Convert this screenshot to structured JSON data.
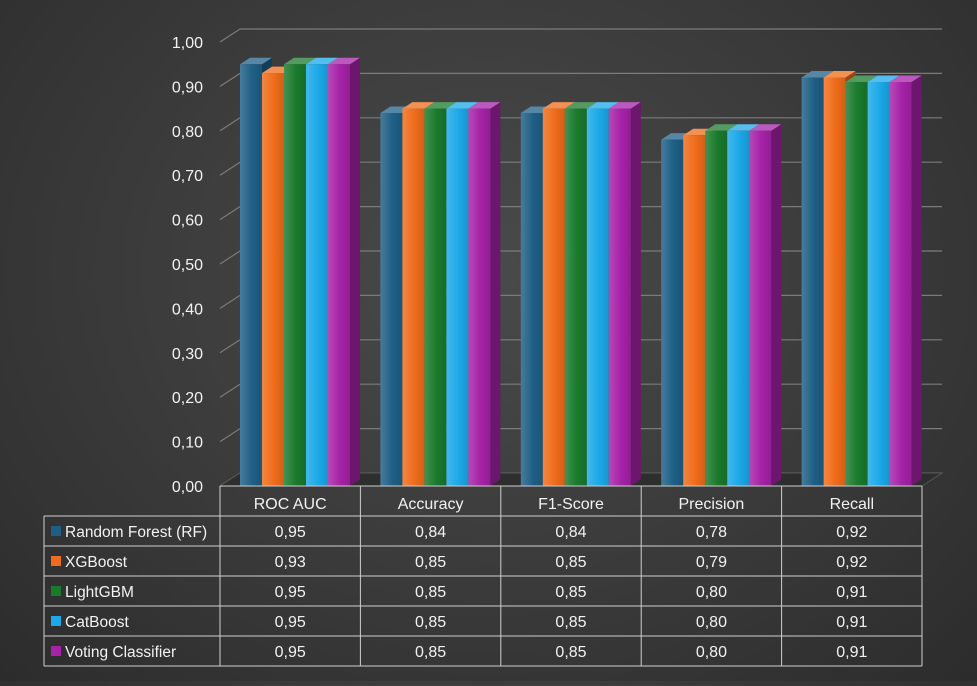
{
  "chart_data": {
    "type": "bar",
    "style": "3d-clustered-column-with-data-table",
    "categories": [
      "ROC AUC",
      "Accuracy",
      "F1-Score",
      "Precision",
      "Recall"
    ],
    "series": [
      {
        "name": "Random Forest (RF)",
        "color": "#1f5f86",
        "values": [
          0.95,
          0.84,
          0.84,
          0.78,
          0.92
        ]
      },
      {
        "name": "XGBoost",
        "color": "#ef6c1a",
        "values": [
          0.93,
          0.85,
          0.85,
          0.79,
          0.92
        ]
      },
      {
        "name": "LightGBM",
        "color": "#1a7a2c",
        "values": [
          0.95,
          0.85,
          0.85,
          0.8,
          0.91
        ]
      },
      {
        "name": "CatBoost",
        "color": "#1ba9e8",
        "values": [
          0.95,
          0.85,
          0.85,
          0.8,
          0.91
        ]
      },
      {
        "name": "Voting Classifier",
        "color": "#a622a8",
        "values": [
          0.95,
          0.85,
          0.85,
          0.8,
          0.91
        ]
      }
    ],
    "table_values": [
      [
        "0,95",
        "0,84",
        "0,84",
        "0,78",
        "0,92"
      ],
      [
        "0,93",
        "0,85",
        "0,85",
        "0,79",
        "0,92"
      ],
      [
        "0,95",
        "0,85",
        "0,85",
        "0,80",
        "0,91"
      ],
      [
        "0,95",
        "0,85",
        "0,85",
        "0,80",
        "0,91"
      ],
      [
        "0,95",
        "0,85",
        "0,85",
        "0,80",
        "0,91"
      ]
    ],
    "y_ticks": [
      "0,00",
      "0,10",
      "0,20",
      "0,30",
      "0,40",
      "0,50",
      "0,60",
      "0,70",
      "0,80",
      "0,90",
      "1,00"
    ],
    "ylim": [
      0,
      1
    ],
    "grid": true,
    "legend": "data-table-left",
    "title": "",
    "xlabel": "",
    "ylabel": ""
  }
}
